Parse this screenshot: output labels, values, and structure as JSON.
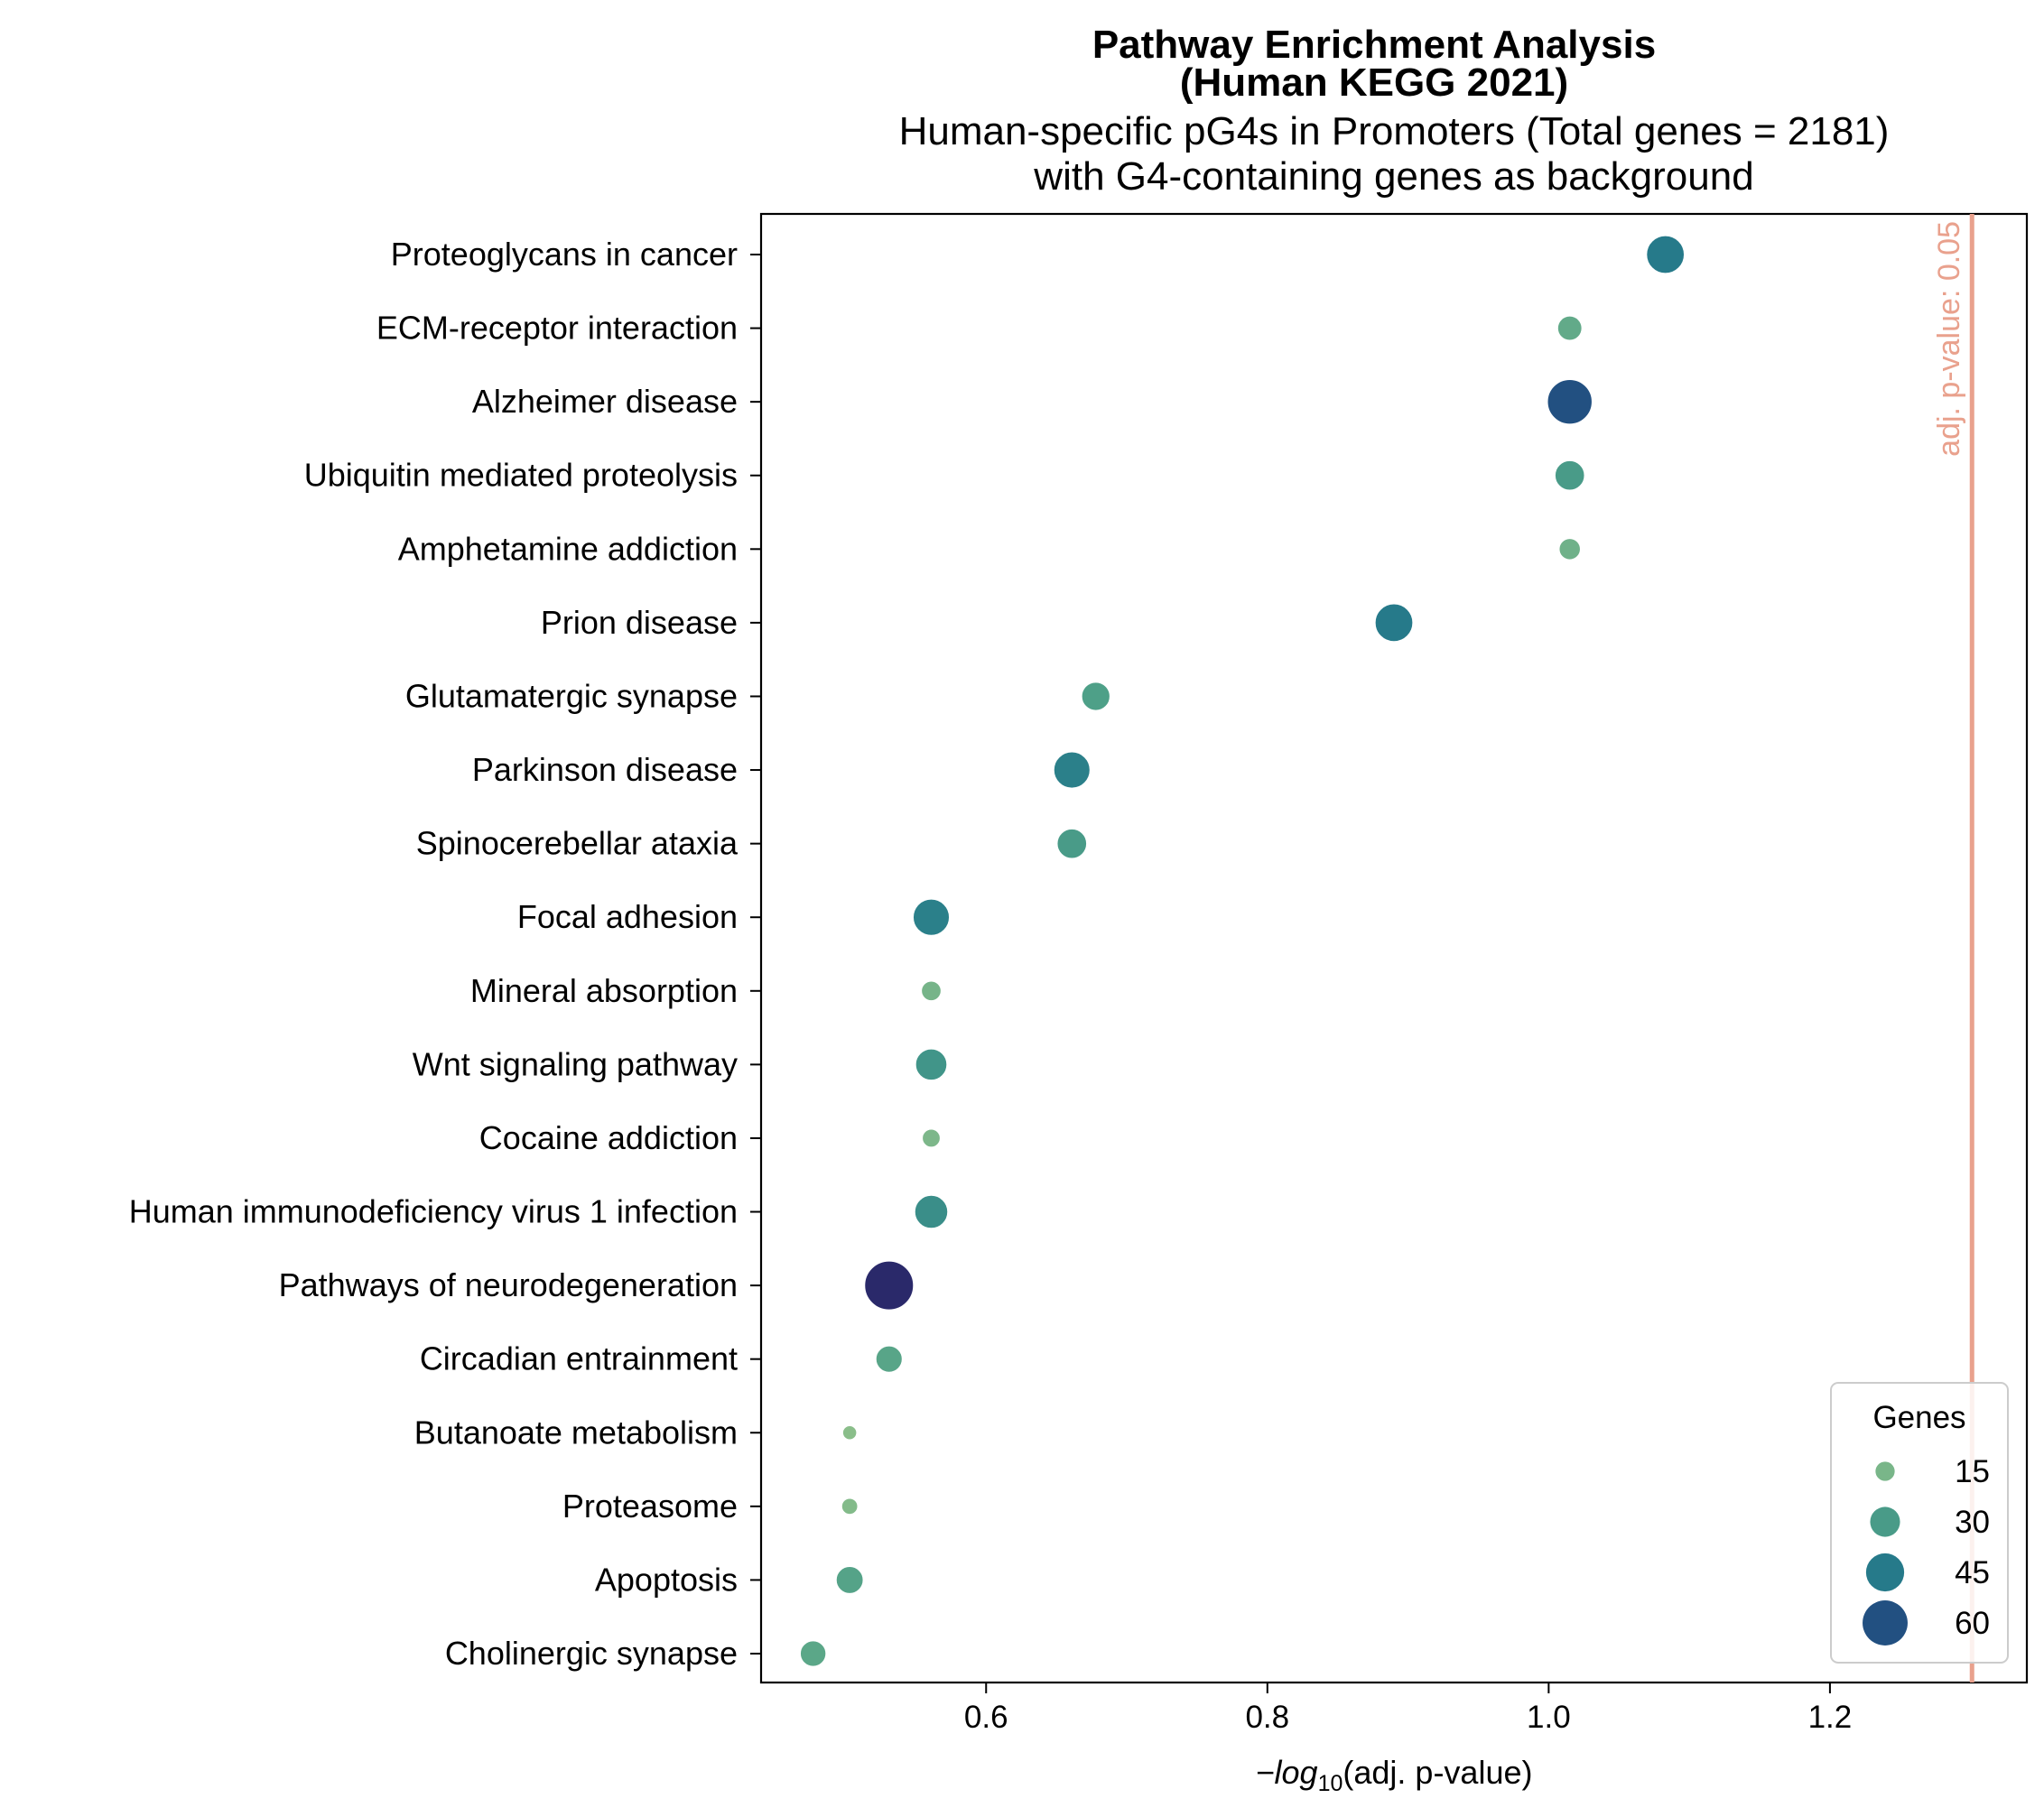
{
  "chart_data": {
    "type": "scatter",
    "title": "Pathway Enrichment Analysis\n(Human KEGG 2021)",
    "subtitle": "Human-specific pG4s in Promoters (Total genes = 2181)\nwith G4-containing genes as background",
    "xlabel_prefix": "−log",
    "xlabel_sub": "10",
    "xlabel_suffix": "(adj. p-value)",
    "xlim": [
      0.44,
      1.34
    ],
    "xticks": [
      0.6,
      0.8,
      1.0,
      1.2
    ],
    "xtick_labels": [
      "0.6",
      "0.8",
      "1.0",
      "1.2"
    ],
    "grid": false,
    "categories": [
      "Proteoglycans in cancer",
      "ECM-receptor interaction",
      "Alzheimer disease",
      "Ubiquitin mediated proteolysis",
      "Amphetamine addiction",
      "Prion disease",
      "Glutamatergic synapse",
      "Parkinson disease",
      "Spinocerebellar ataxia",
      "Focal adhesion",
      "Mineral absorption",
      "Wnt signaling pathway",
      "Cocaine addiction",
      "Human immunodeficiency virus 1 infection",
      "Pathways of neurodegeneration",
      "Circadian entrainment",
      "Butanoate metabolism",
      "Proteasome",
      "Apoptosis",
      "Cholinergic synapse"
    ],
    "x": [
      1.083,
      1.015,
      1.015,
      1.015,
      1.015,
      0.89,
      0.678,
      0.661,
      0.661,
      0.561,
      0.561,
      0.561,
      0.561,
      0.561,
      0.531,
      0.531,
      0.503,
      0.503,
      0.503,
      0.477
    ],
    "genes": [
      45,
      22,
      60,
      30,
      18,
      45,
      28,
      42,
      30,
      42,
      16,
      33,
      14,
      36,
      70,
      25,
      10,
      12,
      26,
      24
    ],
    "reference_line": {
      "x": 1.301,
      "label": "adj. p-value: 0.05",
      "color": "#e9a18d"
    },
    "legend": {
      "title": "Genes",
      "placement": "lower-right",
      "entries": [
        {
          "label": "15",
          "value": 15
        },
        {
          "label": "30",
          "value": 30
        },
        {
          "label": "45",
          "value": 45
        },
        {
          "label": "60",
          "value": 60
        }
      ]
    },
    "colormap": "crest"
  }
}
